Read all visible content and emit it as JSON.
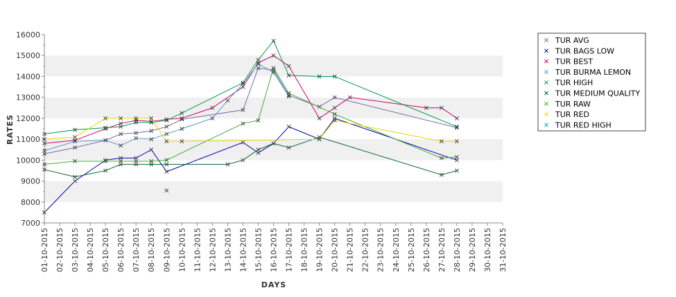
{
  "chart_data": {
    "type": "line",
    "xlabel": "DAYS",
    "ylabel": "RATES",
    "ylim": [
      7000,
      16000
    ],
    "yticks": [
      7000,
      8000,
      9000,
      10000,
      11000,
      12000,
      13000,
      14000,
      15000,
      16000
    ],
    "grid": "alternating horizontal bands",
    "legend_position": "right",
    "x": [
      "01-10-2015",
      "02-10-2015",
      "03-10-2015",
      "04-10-2015",
      "05-10-2015",
      "06-10-2015",
      "07-10-2015",
      "08-10-2015",
      "09-10-2015",
      "10-10-2015",
      "11-10-2015",
      "12-10-2015",
      "13-10-2015",
      "14-10-2015",
      "15-10-2015",
      "16-10-2015",
      "17-10-2015",
      "18-10-2015",
      "19-10-2015",
      "20-10-2015",
      "21-10-2015",
      "22-10-2015",
      "23-10-2015",
      "24-10-2015",
      "25-10-2015",
      "26-10-2015",
      "27-10-2015",
      "28-10-2015",
      "29-10-2015",
      "30-10-2015",
      "31-10-2015"
    ],
    "series": [
      {
        "name": "TUR AVG",
        "color": "#7b68a6",
        "points": [
          [
            "01-10-2015",
            10300
          ],
          [
            "03-10-2015",
            10600
          ],
          [
            "05-10-2015",
            10950
          ],
          [
            "06-10-2015",
            11250
          ],
          [
            "07-10-2015",
            11300
          ],
          [
            "08-10-2015",
            11400
          ],
          [
            "09-10-2015",
            11600
          ],
          [
            "10-10-2015",
            11950
          ],
          [
            "14-10-2015",
            12400
          ],
          [
            "15-10-2015",
            14400
          ],
          [
            "16-10-2015",
            14300
          ],
          [
            "17-10-2015",
            13100
          ],
          [
            "19-10-2015",
            12550
          ],
          [
            "20-10-2015",
            13000
          ],
          [
            "28-10-2015",
            11550
          ]
        ],
        "extra_points": [
          [
            "09-10-2015",
            8550
          ]
        ]
      },
      {
        "name": "TUR BAGS LOW",
        "color": "#0000aa",
        "points": [
          [
            "01-10-2015",
            7500
          ],
          [
            "03-10-2015",
            9000
          ],
          [
            "05-10-2015",
            10000
          ],
          [
            "06-10-2015",
            10100
          ],
          [
            "07-10-2015",
            10100
          ],
          [
            "08-10-2015",
            10500
          ],
          [
            "09-10-2015",
            9450
          ],
          [
            "14-10-2015",
            10850
          ],
          [
            "15-10-2015",
            10350
          ],
          [
            "16-10-2015",
            10800
          ],
          [
            "17-10-2015",
            11600
          ],
          [
            "19-10-2015",
            11000
          ],
          [
            "20-10-2015",
            12000
          ],
          [
            "28-10-2015",
            10000
          ]
        ]
      },
      {
        "name": "TUR BEST",
        "color": "#cc0077",
        "points": [
          [
            "01-10-2015",
            10800
          ],
          [
            "03-10-2015",
            10950
          ],
          [
            "05-10-2015",
            11500
          ],
          [
            "06-10-2015",
            11750
          ],
          [
            "07-10-2015",
            11900
          ],
          [
            "08-10-2015",
            11850
          ],
          [
            "09-10-2015",
            11950
          ],
          [
            "10-10-2015",
            12000
          ],
          [
            "12-10-2015",
            12500
          ],
          [
            "14-10-2015",
            13500
          ],
          [
            "15-10-2015",
            14650
          ],
          [
            "16-10-2015",
            15000
          ],
          [
            "17-10-2015",
            14500
          ],
          [
            "19-10-2015",
            12000
          ],
          [
            "20-10-2015",
            12500
          ],
          [
            "21-10-2015",
            13000
          ],
          [
            "26-10-2015",
            12500
          ],
          [
            "27-10-2015",
            12500
          ],
          [
            "28-10-2015",
            12000
          ]
        ]
      },
      {
        "name": "TUR BURMA LEMON",
        "color": "#5599cc",
        "points": [
          [
            "01-10-2015",
            10450
          ],
          [
            "03-10-2015",
            10900
          ],
          [
            "05-10-2015",
            10950
          ],
          [
            "06-10-2015",
            10700
          ],
          [
            "07-10-2015",
            11050
          ],
          [
            "08-10-2015",
            11000
          ],
          [
            "09-10-2015",
            11250
          ],
          [
            "10-10-2015",
            11500
          ],
          [
            "12-10-2015",
            12000
          ],
          [
            "13-10-2015",
            12850
          ],
          [
            "14-10-2015",
            13650
          ],
          [
            "15-10-2015",
            14600
          ],
          [
            "16-10-2015",
            14200
          ],
          [
            "17-10-2015",
            13050
          ]
        ]
      },
      {
        "name": "TUR HIGH",
        "color": "#009944",
        "points": [
          [
            "01-10-2015",
            11250
          ],
          [
            "03-10-2015",
            11450
          ],
          [
            "05-10-2015",
            11550
          ],
          [
            "06-10-2015",
            11600
          ],
          [
            "07-10-2015",
            11800
          ],
          [
            "08-10-2015",
            11800
          ],
          [
            "09-10-2015",
            11900
          ],
          [
            "10-10-2015",
            12250
          ],
          [
            "14-10-2015",
            13700
          ],
          [
            "15-10-2015",
            14800
          ],
          [
            "16-10-2015",
            15700
          ],
          [
            "17-10-2015",
            14050
          ],
          [
            "19-10-2015",
            14000
          ],
          [
            "20-10-2015",
            14000
          ],
          [
            "28-10-2015",
            11600
          ]
        ]
      },
      {
        "name": "TUR MEDIUM QUALITY",
        "color": "#006622",
        "points": [
          [
            "01-10-2015",
            9550
          ],
          [
            "03-10-2015",
            9200
          ],
          [
            "05-10-2015",
            9500
          ],
          [
            "06-10-2015",
            9800
          ],
          [
            "07-10-2015",
            9800
          ],
          [
            "08-10-2015",
            9800
          ],
          [
            "09-10-2015",
            9800
          ],
          [
            "13-10-2015",
            9800
          ],
          [
            "14-10-2015",
            10000
          ],
          [
            "15-10-2015",
            10500
          ],
          [
            "16-10-2015",
            10800
          ],
          [
            "17-10-2015",
            10600
          ],
          [
            "19-10-2015",
            11100
          ],
          [
            "27-10-2015",
            9300
          ],
          [
            "28-10-2015",
            9500
          ]
        ]
      },
      {
        "name": "TUR RAW",
        "color": "#44aa33",
        "points": [
          [
            "01-10-2015",
            9800
          ],
          [
            "03-10-2015",
            9950
          ],
          [
            "05-10-2015",
            9950
          ],
          [
            "06-10-2015",
            9950
          ],
          [
            "07-10-2015",
            9950
          ],
          [
            "08-10-2015",
            9950
          ],
          [
            "09-10-2015",
            10000
          ],
          [
            "14-10-2015",
            11750
          ],
          [
            "15-10-2015",
            11900
          ],
          [
            "16-10-2015",
            14400
          ],
          [
            "17-10-2015",
            13200
          ],
          [
            "20-10-2015",
            12200
          ],
          [
            "27-10-2015",
            10100
          ],
          [
            "28-10-2015",
            10150
          ]
        ]
      },
      {
        "name": "TUR RED",
        "color": "#e8d400",
        "points": [
          [
            "01-10-2015",
            11000
          ],
          [
            "03-10-2015",
            11100
          ],
          [
            "05-10-2015",
            12000
          ],
          [
            "06-10-2015",
            12000
          ],
          [
            "07-10-2015",
            12000
          ],
          [
            "08-10-2015",
            12000
          ],
          [
            "09-10-2015",
            10900
          ],
          [
            "10-10-2015",
            10900
          ],
          [
            "19-10-2015",
            11000
          ],
          [
            "20-10-2015",
            11900
          ],
          [
            "27-10-2015",
            10900
          ],
          [
            "28-10-2015",
            10900
          ]
        ]
      },
      {
        "name": "TUR RED HIGH",
        "color": "#00aaaa",
        "points": [],
        "extra_points": []
      }
    ]
  }
}
